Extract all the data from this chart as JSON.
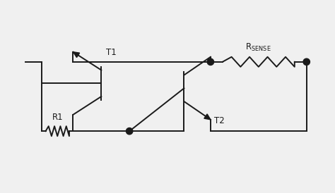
{
  "bg_color": "#f0f0f0",
  "line_color": "#1a1a1a",
  "line_width": 1.4,
  "figsize": [
    4.74,
    2.74
  ],
  "dpi": 100,
  "xlim": [
    0,
    10
  ],
  "ylim": [
    0,
    5.5
  ]
}
